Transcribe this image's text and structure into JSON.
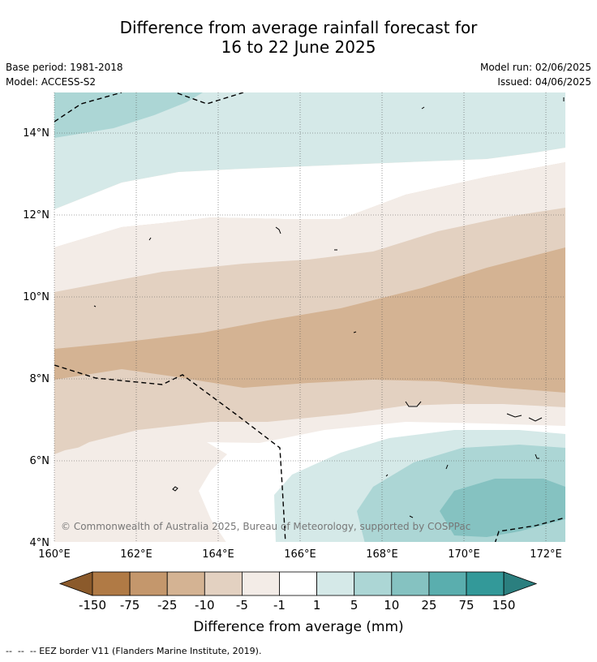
{
  "title": {
    "line1": "Difference from average rainfall forecast for",
    "line2": "16 to 22 June 2025"
  },
  "meta": {
    "base_period": "Base period: 1981-2018",
    "model": "Model: ACCESS-S2",
    "model_run": "Model run: 02/06/2025",
    "issued": "Issued: 04/06/2025"
  },
  "map": {
    "lat_labels": [
      "14°N",
      "12°N",
      "10°N",
      "8°N",
      "6°N",
      "4°N"
    ],
    "lon_labels": [
      "160°E",
      "162°E",
      "164°E",
      "166°E",
      "168°E",
      "170°E",
      "172°E"
    ],
    "copyright": "© Commonwealth of Australia 2025, Bureau of Meteorology, supported by COSPPac"
  },
  "legend": {
    "ticks": [
      "-150",
      "-75",
      "-25",
      "-10",
      "-5",
      "-1",
      "1",
      "5",
      "10",
      "25",
      "75",
      "150"
    ],
    "colors": [
      "#8b5a2b",
      "#b07a45",
      "#c4976c",
      "#d4b393",
      "#e3d1c1",
      "#f3ece7",
      "#ffffff",
      "#d5e9e8",
      "#acd6d5",
      "#85c2c1",
      "#5aaeae",
      "#339999",
      "#2b7f7f"
    ],
    "label": "Difference from average (mm)"
  },
  "footer": {
    "eez_note": "--  --  -- EEZ border V11 (Flanders Marine Institute, 2019)."
  }
}
